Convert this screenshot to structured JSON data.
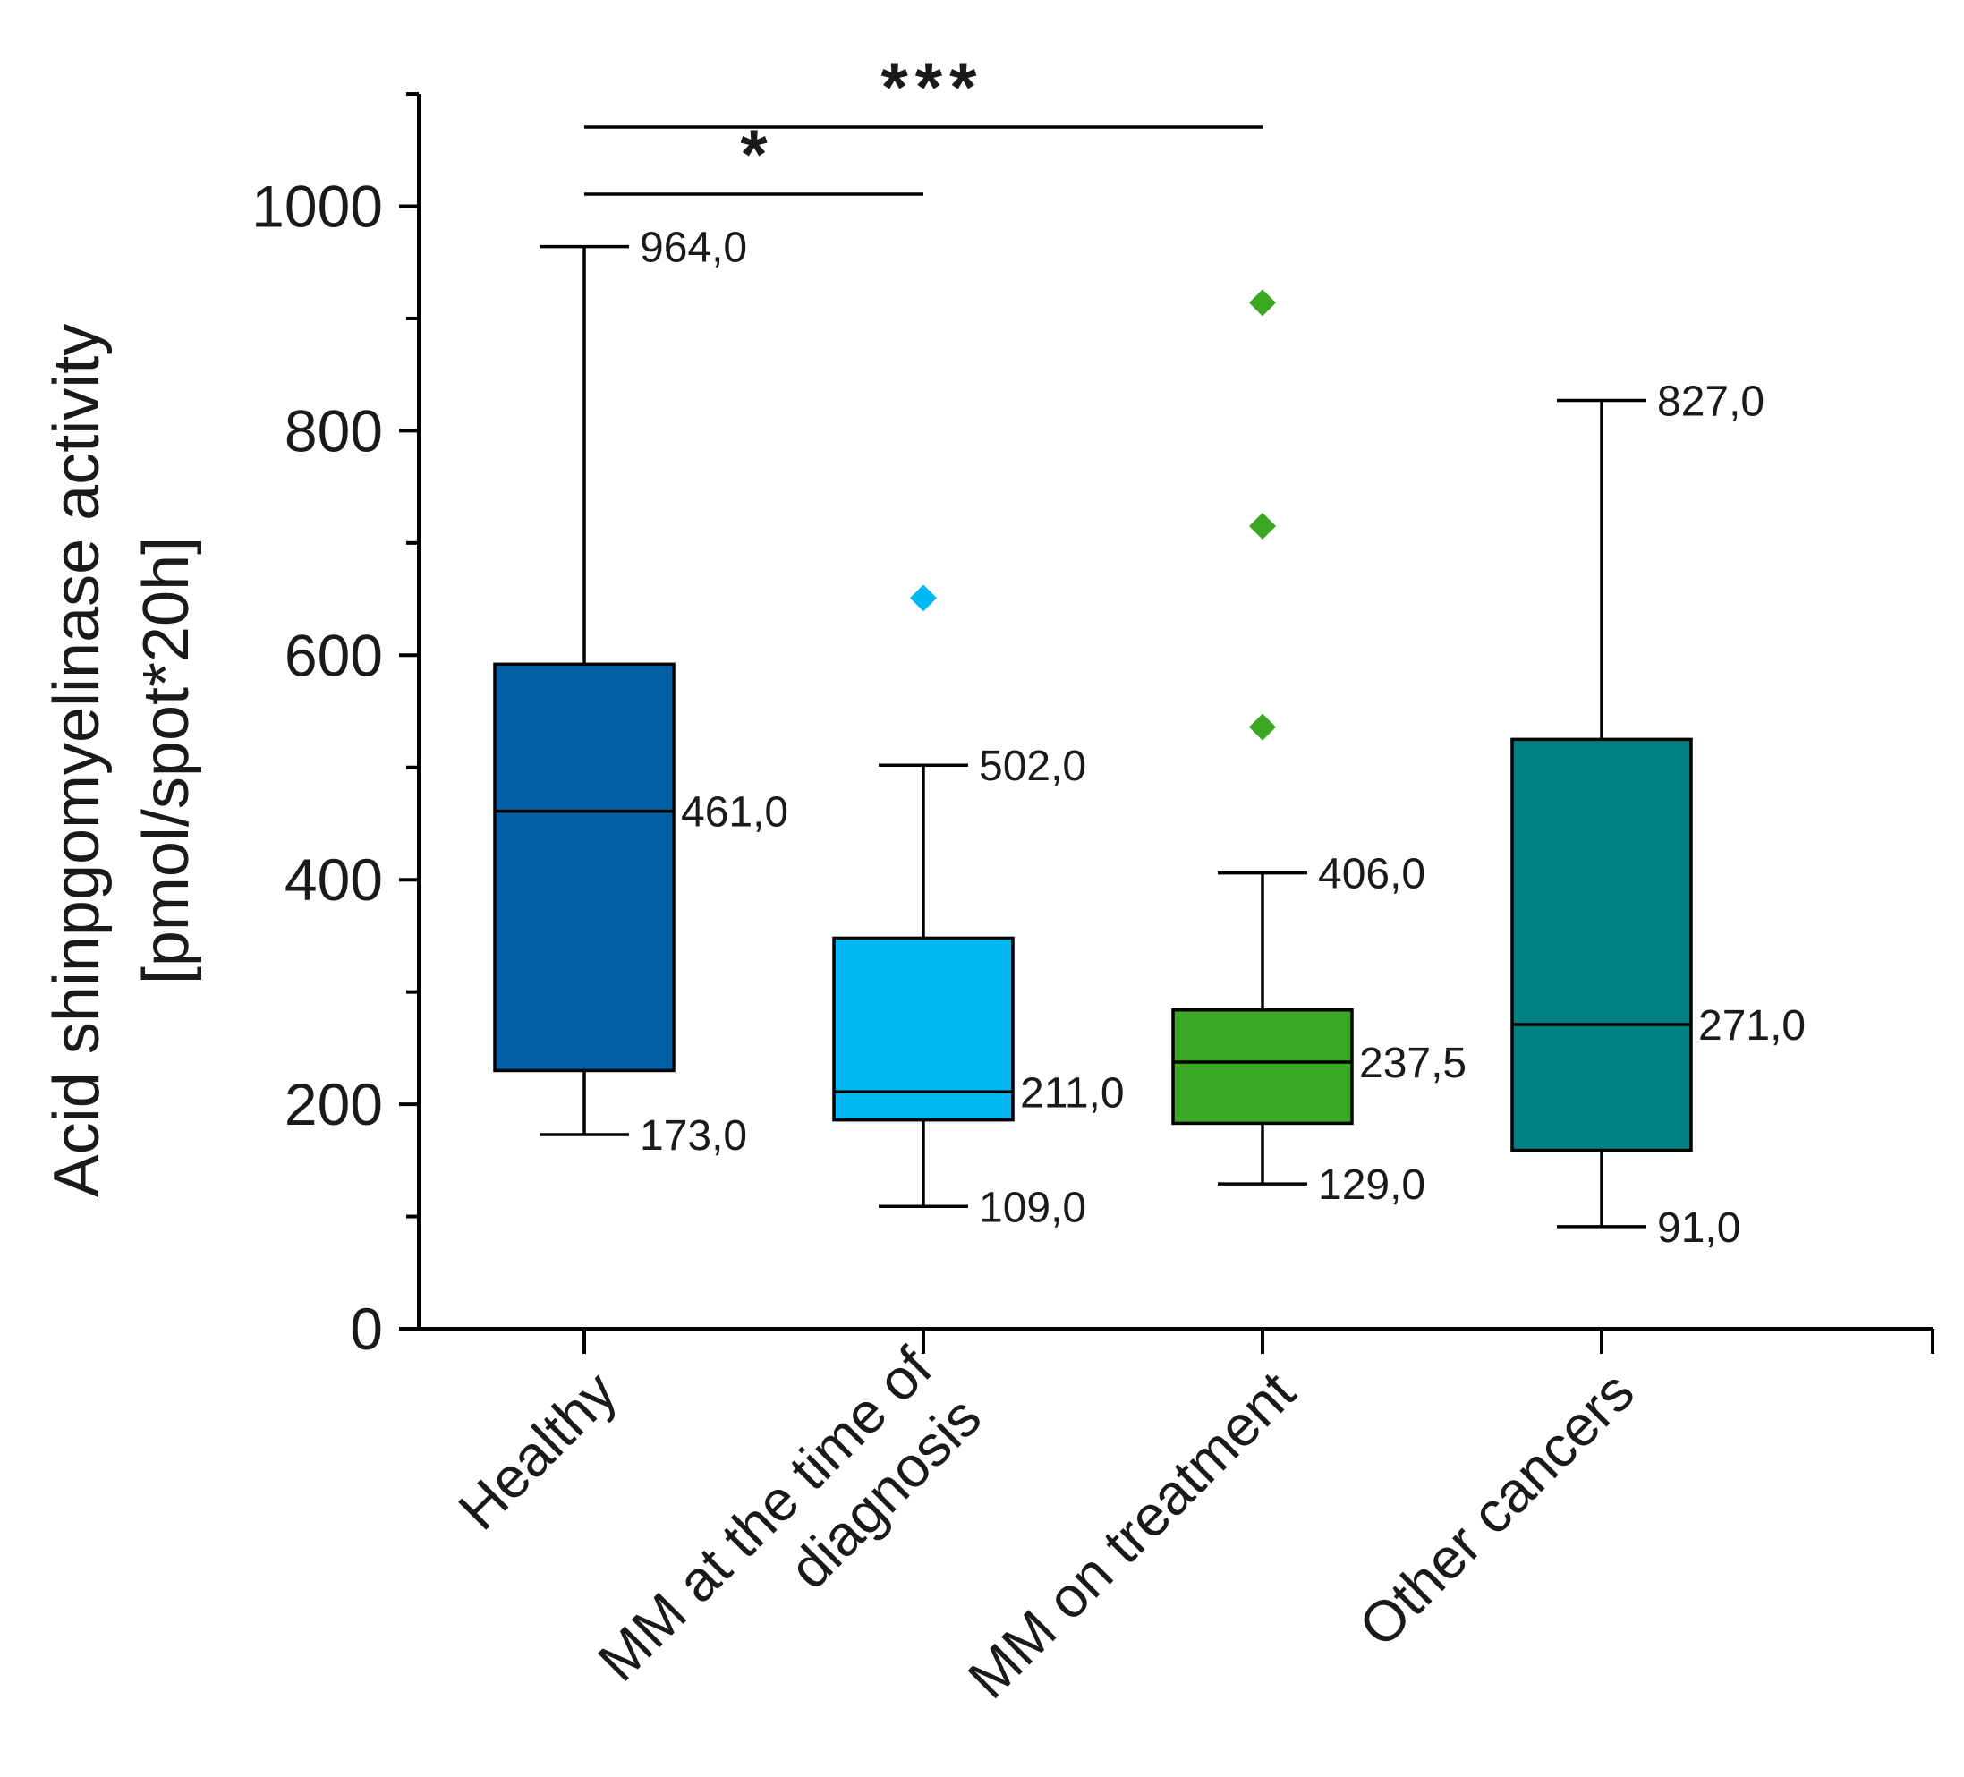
{
  "chart_data": {
    "type": "box",
    "ylabel_lines": [
      "Acid shinpgomyelinase activity",
      "[pmol/spot*20h]"
    ],
    "ylim": [
      0,
      1100
    ],
    "yticks": [
      0,
      200,
      400,
      600,
      800,
      1000
    ],
    "ytick_labels": [
      "0",
      "200",
      "400",
      "600",
      "800",
      "1000"
    ],
    "grid": false,
    "legend": "none",
    "categories": [
      {
        "name_lines": [
          "Healthy"
        ],
        "color": "#0460a6",
        "whisker_low": 173,
        "q1": 230,
        "median": 461,
        "q3": 592,
        "whisker_high": 964,
        "outliers": [],
        "labels": {
          "whisker_low": "173,0",
          "median": "461,0",
          "whisker_high": "964,0"
        }
      },
      {
        "name_lines": [
          "MM at the time of",
          "diagnosis"
        ],
        "color": "#00b9f2",
        "whisker_low": 109,
        "q1": 186,
        "median": 211,
        "q3": 348,
        "whisker_high": 502,
        "outliers": [
          651
        ],
        "labels": {
          "whisker_low": "109,0",
          "median": "211,0",
          "whisker_high": "502,0"
        }
      },
      {
        "name_lines": [
          "MM on treatment"
        ],
        "color": "#3aa822",
        "whisker_low": 129,
        "q1": 183,
        "median": 237.5,
        "q3": 284,
        "whisker_high": 406,
        "outliers": [
          536,
          715,
          914
        ],
        "labels": {
          "whisker_low": "129,0",
          "median": "237,5",
          "whisker_high": "406,0"
        }
      },
      {
        "name_lines": [
          "Other cancers"
        ],
        "color": "#008080",
        "whisker_low": 91,
        "q1": 159,
        "median": 271,
        "q3": 525,
        "whisker_high": 827,
        "outliers": [],
        "labels": {
          "whisker_low": "91,0",
          "median": "271,0",
          "whisker_high": "827,0"
        }
      }
    ],
    "significance": [
      {
        "from": 0,
        "to": 1,
        "label": "*"
      },
      {
        "from": 0,
        "to": 2,
        "label": "***"
      }
    ]
  }
}
